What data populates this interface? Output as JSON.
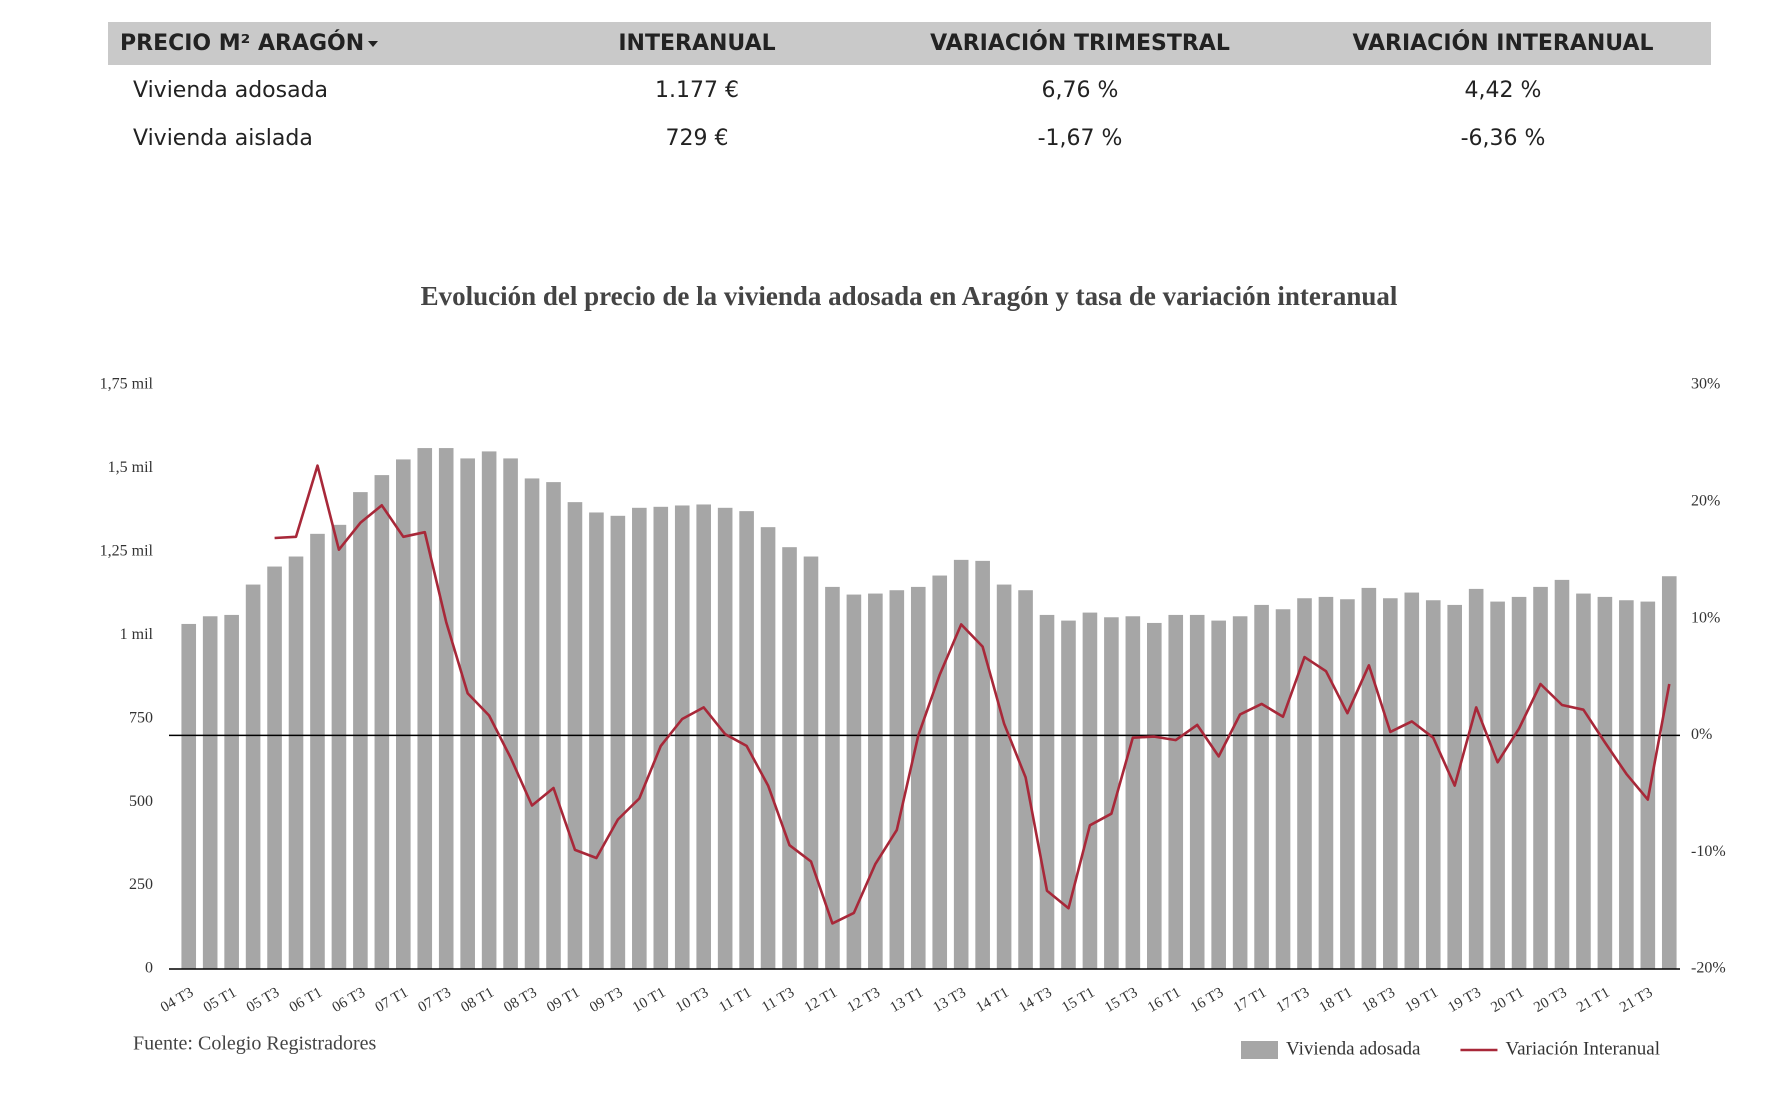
{
  "table": {
    "header": [
      "PRECIO M² ARAGÓN",
      "INTERANUAL",
      "VARIACIÓN TRIMESTRAL",
      "VARIACIÓN INTERANUAL"
    ],
    "rows": [
      [
        "Vivienda adosada",
        "1.177 €",
        "6,76 %",
        "4,42 %"
      ],
      [
        "Vivienda aislada",
        "729 €",
        "-1,67 %",
        "-6,36 %"
      ]
    ]
  },
  "chart_data": {
    "type": "bar-line",
    "title": "Evolución del precio de la vivienda adosada en Aragón y tasa de variación interanual",
    "source": "Fuente: Colegio Registradores",
    "categories": [
      "04 T3",
      null,
      "05 T1",
      null,
      "05 T3",
      null,
      "06 T1",
      null,
      "06 T3",
      null,
      "07 T1",
      null,
      "07 T3",
      null,
      "08 T1",
      null,
      "08 T3",
      null,
      "09 T1",
      null,
      "09 T3",
      null,
      "10 T1",
      null,
      "10 T3",
      null,
      "11 T1",
      null,
      "11 T3",
      null,
      "12 T1",
      null,
      "12 T3",
      null,
      "13 T1",
      null,
      "13 T3",
      null,
      "14 T1",
      null,
      "14 T3",
      null,
      "15 T1",
      null,
      "15 T3",
      null,
      "16 T1",
      null,
      "16 T3",
      null,
      "17 T1",
      null,
      "17 T3",
      null,
      "18 T1",
      null,
      "18 T3",
      null,
      "19 T1",
      null,
      "19 T3",
      null,
      "20 T1",
      null,
      "20 T3",
      null,
      "21 T1",
      null,
      "21 T3",
      null
    ],
    "series": [
      {
        "name": "Vivienda adosada",
        "type": "bar",
        "color": "#a6a6a6",
        "values": [
          1034,
          1057,
          1061,
          1152,
          1206,
          1236,
          1304,
          1331,
          1429,
          1480,
          1527,
          1561,
          1561,
          1530,
          1551,
          1530,
          1470,
          1459,
          1399,
          1368,
          1358,
          1382,
          1385,
          1389,
          1392,
          1382,
          1372,
          1324,
          1264,
          1236,
          1145,
          1122,
          1125,
          1135,
          1145,
          1179,
          1226,
          1223,
          1152,
          1135,
          1061,
          1044,
          1068,
          1054,
          1057,
          1037,
          1061,
          1061,
          1044,
          1057,
          1091,
          1078,
          1111,
          1115,
          1108,
          1142,
          1111,
          1128,
          1105,
          1091,
          1139,
          1101,
          1115,
          1145,
          1166,
          1125,
          1115,
          1105,
          1101,
          1177
        ]
      },
      {
        "name": "Variación Interanual",
        "type": "line",
        "axis": "y2",
        "color": "#a82839",
        "values": [
          null,
          null,
          null,
          null,
          16.9,
          17.0,
          23.1,
          15.9,
          18.2,
          19.7,
          17.0,
          17.4,
          9.7,
          3.6,
          1.7,
          -1.9,
          -6.0,
          -4.5,
          -9.8,
          -10.5,
          -7.2,
          -5.4,
          -0.9,
          1.4,
          2.4,
          0.1,
          -0.9,
          -4.3,
          -9.4,
          -10.8,
          -16.1,
          -15.2,
          -11.0,
          -8.1,
          0.0,
          5.2,
          9.5,
          7.6,
          1.0,
          -3.6,
          -13.3,
          -14.8,
          -7.7,
          -6.7,
          -0.2,
          -0.1,
          -0.4,
          0.9,
          -1.8,
          1.8,
          2.7,
          1.6,
          6.7,
          5.5,
          1.9,
          6.0,
          0.3,
          1.2,
          -0.2,
          -4.3,
          2.4,
          -2.3,
          0.6,
          4.4,
          2.6,
          2.2,
          -0.6,
          -3.3,
          -5.5,
          4.4
        ]
      }
    ],
    "ylim": [
      0,
      1750
    ],
    "yticks": [
      0,
      250,
      500,
      750,
      {
        "value": 1000,
        "label": "1 mil"
      },
      {
        "value": 1250,
        "label": "1,25 mil"
      },
      {
        "value": 1500,
        "label": "1,5 mil"
      },
      {
        "value": 1750,
        "label": "1,75 mil"
      }
    ],
    "y2lim": [
      -20,
      30
    ],
    "y2ticks": [
      {
        "value": -20,
        "label": "-20%"
      },
      {
        "value": -10,
        "label": "-10%"
      },
      {
        "value": 0,
        "label": "0%"
      },
      {
        "value": 10,
        "label": "10%"
      },
      {
        "value": 20,
        "label": "20%"
      },
      {
        "value": 30,
        "label": "30%"
      }
    ],
    "legend": "bottom-right"
  }
}
